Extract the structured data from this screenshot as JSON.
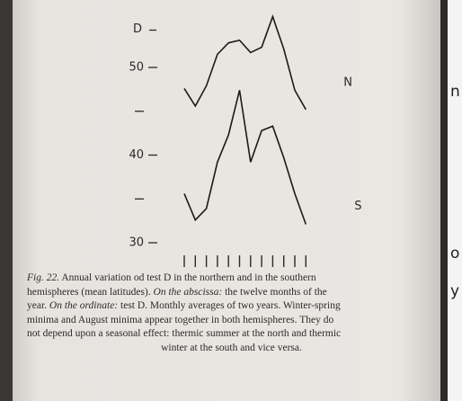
{
  "chart_data": {
    "type": "line",
    "ylabel": "D",
    "categories": [
      null,
      null,
      null,
      null,
      null,
      null,
      null,
      null,
      null,
      null,
      null,
      null
    ],
    "series": [
      {
        "name": "N",
        "color": "#1a1a1a",
        "values": [
          47.6,
          45.6,
          47.9,
          51.5,
          52.8,
          53.1,
          51.7,
          52.3,
          55.8,
          52.1,
          47.4,
          45.2
        ]
      },
      {
        "name": "S",
        "color": "#1a1a1a",
        "values": [
          35.6,
          32.6,
          33.9,
          39.2,
          42.3,
          47.4,
          39.2,
          42.8,
          43.3,
          39.7,
          35.6,
          32.1
        ]
      }
    ],
    "ylim": [
      30,
      56
    ],
    "yticks": [
      30,
      40,
      50
    ],
    "minor_yticks": [
      35,
      45
    ],
    "grid": false
  },
  "caption": [
    [
      {
        "text": "Fig. 22.",
        "italic": true
      },
      {
        "text": " Annual variation od test D in the northern and in the southern"
      }
    ],
    [
      {
        "text": "hemispheres (mean latitudes). "
      },
      {
        "text": "On the abscissa:",
        "italic": true
      },
      {
        "text": " the twelve months of the"
      }
    ],
    [
      {
        "text": "year. "
      },
      {
        "text": "On the ordinate:",
        "italic": true
      },
      {
        "text": " test D. Monthly averages of two years. Winter-spring"
      }
    ],
    [
      {
        "text": "minima and August minima appear together in both hemispheres. They do"
      }
    ],
    [
      {
        "text": "not depend upon a seasonal effect: thermic summer at the north and thermic"
      }
    ],
    [
      {
        "text": "winter at the south and vice versa."
      }
    ]
  ],
  "edge_fragments": [
    "n",
    "o",
    "y"
  ]
}
